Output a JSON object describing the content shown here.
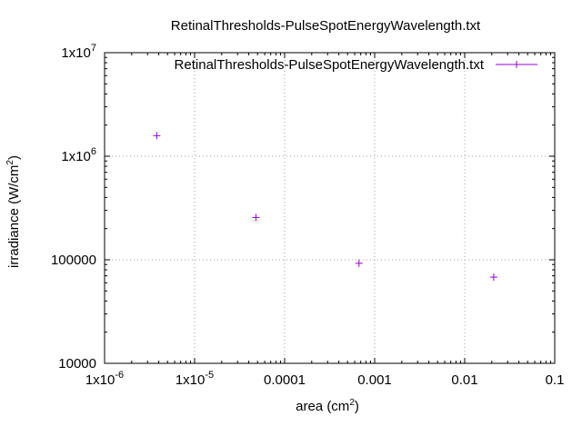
{
  "chart_data": {
    "type": "scatter",
    "title": "RetinalThresholds-PulseSpotEnergyWavelength.txt",
    "xlabel": {
      "base": "area (cm",
      "sup": "2",
      "close": ")"
    },
    "ylabel": {
      "base": "irradiance (W/cm",
      "sup": "2",
      "close": ")"
    },
    "x_scale": "log",
    "y_scale": "log",
    "xlim": [
      1e-06,
      0.1
    ],
    "ylim": [
      10000,
      10000000
    ],
    "grid": true,
    "legend_position": "top-right",
    "x_ticks": [
      {
        "value": 1e-06,
        "base": "1x10",
        "sup": "-6"
      },
      {
        "value": 1e-05,
        "base": "1x10",
        "sup": "-5"
      },
      {
        "value": 0.0001,
        "base": "0.0001",
        "sup": ""
      },
      {
        "value": 0.001,
        "base": "0.001",
        "sup": ""
      },
      {
        "value": 0.01,
        "base": "0.01",
        "sup": ""
      },
      {
        "value": 0.1,
        "base": "0.1",
        "sup": ""
      }
    ],
    "y_ticks": [
      {
        "value": 10000,
        "base": "10000",
        "sup": ""
      },
      {
        "value": 100000,
        "base": "100000",
        "sup": ""
      },
      {
        "value": 1000000,
        "base": "1x10",
        "sup": "6"
      },
      {
        "value": 10000000,
        "base": "1x10",
        "sup": "7"
      }
    ],
    "series": [
      {
        "name": "RetinalThresholds-PulseSpotEnergyWavelength.txt",
        "color": "#9400d3",
        "marker": "plus",
        "points": [
          {
            "x": 3.8e-06,
            "y": 1580000
          },
          {
            "x": 4.8e-05,
            "y": 256000
          },
          {
            "x": 0.00067,
            "y": 92500
          },
          {
            "x": 0.021,
            "y": 68000
          }
        ]
      }
    ]
  }
}
